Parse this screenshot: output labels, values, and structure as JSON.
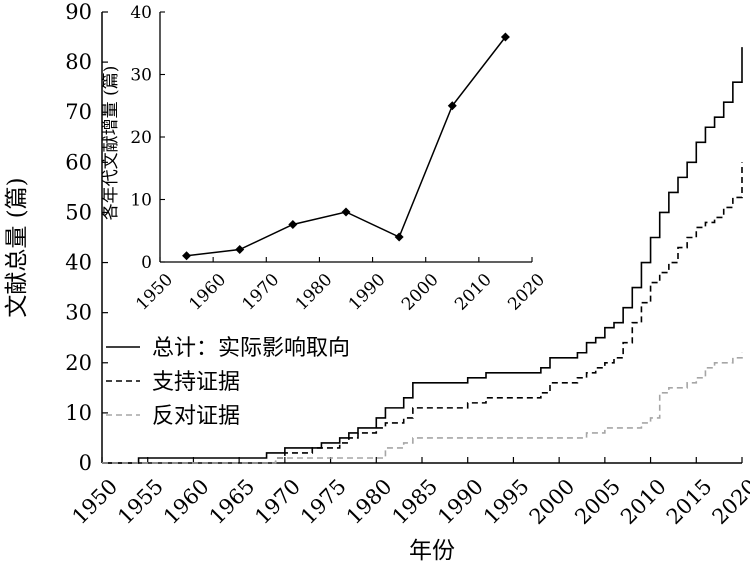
{
  "chart_data": [
    {
      "type": "line",
      "xlabel": "年份",
      "ylabel": "文献总量 (篇)",
      "xlim": [
        1950,
        2020
      ],
      "ylim": [
        0,
        90
      ],
      "xticks": [
        "1950",
        "1955",
        "1960",
        "1965",
        "1970",
        "1975",
        "1980",
        "1985",
        "1990",
        "1995",
        "2000",
        "2005",
        "2010",
        "2015",
        "2020"
      ],
      "yticks": [
        "0",
        "10",
        "20",
        "30",
        "40",
        "50",
        "60",
        "70",
        "80",
        "90"
      ],
      "legend_position": "lower-left",
      "series": [
        {
          "name": "总计：实际影响取向",
          "color": "#000000",
          "dash": "solid",
          "x": [
            1950,
            1952,
            1953,
            1954,
            1955,
            1956,
            1957,
            1958,
            1959,
            1960,
            1961,
            1962,
            1963,
            1964,
            1965,
            1966,
            1967,
            1968,
            1969,
            1970,
            1971,
            1972,
            1973,
            1974,
            1975,
            1976,
            1977,
            1978,
            1979,
            1980,
            1981,
            1982,
            1983,
            1984,
            1985,
            1986,
            1987,
            1988,
            1989,
            1990,
            1991,
            1992,
            1993,
            1994,
            1995,
            1996,
            1997,
            1998,
            1999,
            2000,
            2001,
            2002,
            2003,
            2004,
            2005,
            2006,
            2007,
            2008,
            2009,
            2010,
            2011,
            2012,
            2013,
            2014,
            2015,
            2016,
            2017,
            2018,
            2019,
            2020
          ],
          "y": [
            0,
            0,
            0,
            1,
            1,
            1,
            1,
            1,
            1,
            1,
            1,
            1,
            1,
            1,
            1,
            1,
            1,
            2,
            2,
            3,
            3,
            3,
            3,
            4,
            4,
            5,
            6,
            7,
            7,
            9,
            11,
            11,
            13,
            16,
            16,
            16,
            16,
            16,
            16,
            17,
            17,
            18,
            18,
            18,
            18,
            18,
            18,
            19,
            21,
            21,
            21,
            22,
            24,
            25,
            27,
            28,
            31,
            35,
            40,
            45,
            50,
            54,
            57,
            60,
            64,
            67,
            69,
            72,
            76,
            83
          ]
        },
        {
          "name": "支持证据",
          "color": "#000000",
          "dash": "dashed",
          "x": [
            1950,
            1968,
            1969,
            1970,
            1971,
            1972,
            1973,
            1974,
            1975,
            1976,
            1977,
            1978,
            1979,
            1980,
            1981,
            1982,
            1983,
            1984,
            1985,
            1986,
            1987,
            1988,
            1989,
            1990,
            1991,
            1992,
            1993,
            1994,
            1995,
            1996,
            1997,
            1998,
            1999,
            2000,
            2001,
            2002,
            2003,
            2004,
            2005,
            2006,
            2007,
            2008,
            2009,
            2010,
            2011,
            2012,
            2013,
            2014,
            2015,
            2016,
            2017,
            2018,
            2019,
            2020
          ],
          "y": [
            0,
            0,
            1,
            2,
            2,
            2,
            3,
            3,
            3,
            4,
            5,
            6,
            6,
            7,
            8,
            8,
            9,
            11,
            11,
            11,
            11,
            11,
            11,
            12,
            12,
            13,
            13,
            13,
            13,
            13,
            13,
            14,
            16,
            16,
            16,
            17,
            18,
            19,
            20,
            21,
            24,
            28,
            32,
            36,
            38,
            40,
            43,
            45,
            47,
            48,
            49,
            51,
            53,
            60
          ]
        },
        {
          "name": "反对证据",
          "color": "#a6a6a6",
          "dash": "dashed",
          "x": [
            1950,
            1968,
            1969,
            1970,
            1975,
            1976,
            1978,
            1979,
            1980,
            1981,
            1982,
            1983,
            1984,
            1985,
            1990,
            1995,
            1998,
            1999,
            2000,
            2001,
            2002,
            2003,
            2004,
            2005,
            2006,
            2007,
            2008,
            2009,
            2010,
            2011,
            2012,
            2013,
            2014,
            2015,
            2016,
            2017,
            2018,
            2019,
            2020
          ],
          "y": [
            0,
            0,
            1,
            1,
            1,
            1,
            1,
            1,
            1,
            3,
            3,
            4,
            5,
            5,
            5,
            5,
            5,
            5,
            5,
            5,
            5,
            6,
            6,
            7,
            7,
            7,
            7,
            8,
            9,
            14,
            15,
            15,
            16,
            17,
            19,
            20,
            20,
            21,
            22
          ]
        }
      ]
    },
    {
      "type": "line",
      "xlabel": "",
      "ylabel": "各年代文献增量 (篇)",
      "xlim": [
        1950,
        2020
      ],
      "ylim": [
        0,
        40
      ],
      "xticks": [
        "1950",
        "1960",
        "1970",
        "1980",
        "1990",
        "2000",
        "2010",
        "2020"
      ],
      "yticks": [
        "0",
        "10",
        "20",
        "30",
        "40"
      ],
      "marker": "diamond",
      "series": [
        {
          "color": "#000000",
          "x": [
            1955,
            1965,
            1975,
            1985,
            1995,
            2005,
            2015
          ],
          "y": [
            1,
            2,
            6,
            8,
            4,
            25,
            36
          ]
        }
      ]
    }
  ]
}
